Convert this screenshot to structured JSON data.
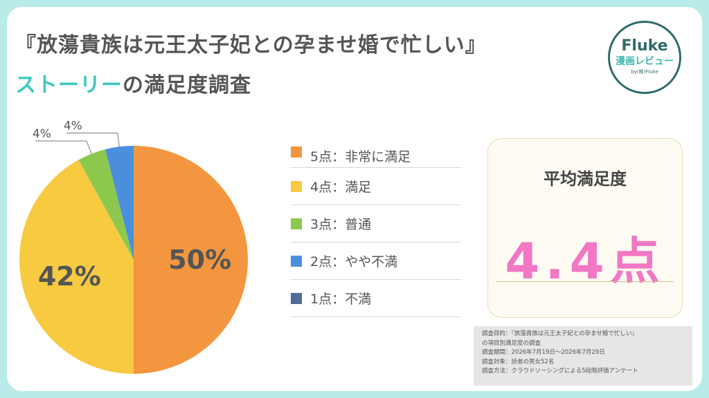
{
  "header": {
    "title": "『放蕩貴族は元王太子妃との孕ませ婚で忙しい』",
    "subtitle_accent": "ストーリー",
    "subtitle_rest": "の満足度調査"
  },
  "logo": {
    "brand": "Fluke",
    "sub": "漫画レビュー",
    "by": "by(株)Fluke"
  },
  "colors": {
    "background": "#b9ebe8",
    "accent": "#40c8c0",
    "highlight": "#f277c4"
  },
  "chart_data": {
    "type": "pie",
    "categories": [
      "5点：非常に満足",
      "4点：満足",
      "3点：普通",
      "2点：やや不満",
      "1点：不満"
    ],
    "values": [
      50,
      42,
      4,
      4,
      0
    ],
    "labels": [
      "50%",
      "42%",
      "4%",
      "4%",
      ""
    ],
    "colors": [
      "#f4963f",
      "#f7ca40",
      "#8cc84e",
      "#4b8fdc",
      "#4d6c97"
    ],
    "legend_position": "right"
  },
  "average": {
    "title": "平均満足度",
    "value": "4.4点"
  },
  "notes": [
    "調査目的：『放蕩貴族は元王太子妃との孕ませ婚で忙しい』",
    "の項目別満足度の調査",
    "調査期間：2026年7月19日〜2026年7月29日",
    "調査対象：読者の男女52名",
    "調査方法：クラウドソーシングによる5段階評価アンケート"
  ]
}
